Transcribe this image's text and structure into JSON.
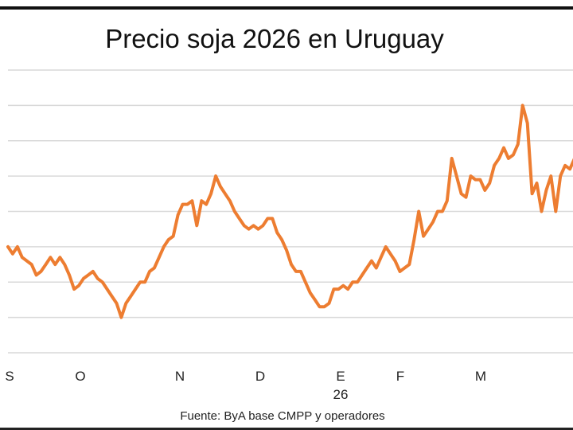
{
  "chart_data": {
    "type": "line",
    "title": "Precio soja 2026 en Uruguay",
    "xlabel": "",
    "ylabel": "",
    "x_tick_labels": [
      "S",
      "O",
      "N",
      "D",
      "E",
      "F",
      "M"
    ],
    "x_sublabel": "26",
    "source": "Fuente: ByA  base  CMPP y operadores",
    "ylim": [
      0,
      80
    ],
    "y_gridlines": [
      0,
      10,
      20,
      30,
      40,
      50,
      60,
      70,
      80
    ],
    "y_tick_labels_shown": false,
    "grid": true,
    "legend": "none",
    "series": [
      {
        "color": "#ED7D31",
        "values": [
          30,
          28,
          30,
          27,
          26,
          25,
          22,
          23,
          25,
          27,
          25,
          27,
          25,
          22,
          18,
          19,
          21,
          22,
          23,
          21,
          20,
          18,
          16,
          14,
          10,
          14,
          16,
          18,
          20,
          20,
          23,
          24,
          27,
          30,
          32,
          33,
          39,
          42,
          42,
          43,
          36,
          43,
          42,
          45,
          50,
          47,
          45,
          43,
          40,
          38,
          36,
          35,
          36,
          35,
          36,
          38,
          38,
          34,
          32,
          29,
          25,
          23,
          23,
          20,
          17,
          15,
          13,
          13,
          14,
          18,
          18,
          19,
          18,
          20,
          20,
          22,
          24,
          26,
          24,
          27,
          30,
          28,
          26,
          23,
          24,
          25,
          32,
          40,
          33,
          35,
          37,
          40,
          40,
          43,
          55,
          50,
          45,
          44,
          50,
          49,
          49,
          46,
          48,
          53,
          55,
          58,
          55,
          56,
          59,
          70,
          65,
          45,
          48,
          40,
          46,
          50,
          40,
          50,
          53,
          52,
          55
        ]
      }
    ]
  }
}
